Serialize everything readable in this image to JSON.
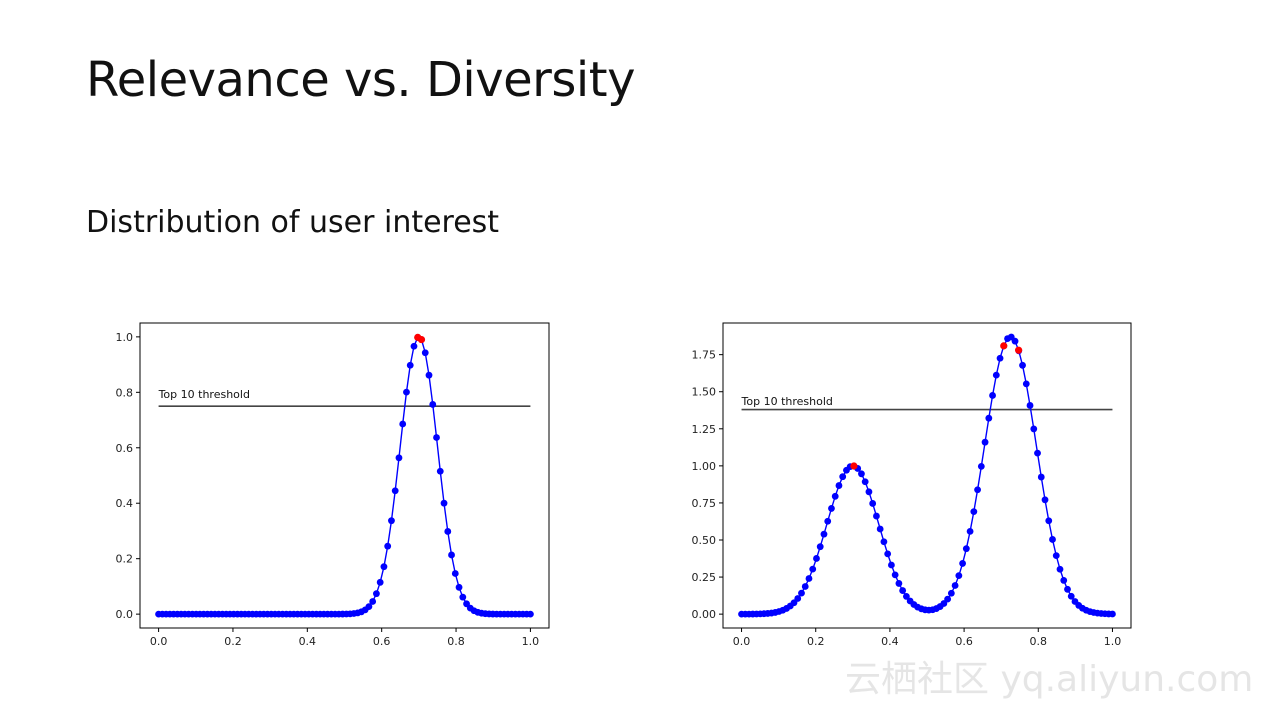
{
  "slide": {
    "title": "Relevance vs. Diversity",
    "subtitle": "Distribution of user interest",
    "watermark": "云栖社区 yq.aliyun.com"
  },
  "colors": {
    "line": "#0000ff",
    "dot": "#0000ff",
    "highlight": "#ff0000",
    "threshold": "#444444"
  },
  "chart_data": [
    {
      "type": "line",
      "title": "",
      "xlabel": "",
      "ylabel": "",
      "xlim": [
        -0.05,
        1.05
      ],
      "ylim": [
        -0.05,
        1.05
      ],
      "x_ticks": [
        0.0,
        0.2,
        0.4,
        0.6,
        0.8,
        1.0
      ],
      "x_tick_labels": [
        "0.0",
        "0.2",
        "0.4",
        "0.6",
        "0.8",
        "1.0"
      ],
      "y_ticks": [
        0.0,
        0.2,
        0.4,
        0.6,
        0.8,
        1.0
      ],
      "y_tick_labels": [
        "0.0",
        "0.2",
        "0.4",
        "0.6",
        "0.8",
        "1.0"
      ],
      "n_points": 100,
      "x_range": [
        0.0,
        1.0
      ],
      "peaks": [
        {
          "center": 0.7,
          "height": 1.0,
          "sigma": 0.05
        }
      ],
      "threshold": {
        "y": 0.75,
        "x_start": 0.0,
        "x_end": 1.0,
        "label": "Top 10 threshold",
        "label_x": 0.0,
        "label_y": 0.78
      },
      "highlighted_x": [
        0.697,
        0.707
      ]
    },
    {
      "type": "line",
      "title": "",
      "xlabel": "",
      "ylabel": "",
      "xlim": [
        -0.05,
        1.05
      ],
      "ylim": [
        -0.0935,
        1.9635
      ],
      "x_ticks": [
        0.0,
        0.2,
        0.4,
        0.6,
        0.8,
        1.0
      ],
      "x_tick_labels": [
        "0.0",
        "0.2",
        "0.4",
        "0.6",
        "0.8",
        "1.0"
      ],
      "y_ticks": [
        0.0,
        0.25,
        0.5,
        0.75,
        1.0,
        1.25,
        1.5,
        1.75
      ],
      "y_tick_labels": [
        "0.00",
        "0.25",
        "0.50",
        "0.75",
        "1.00",
        "1.25",
        "1.50",
        "1.75"
      ],
      "n_points": 100,
      "x_range": [
        0.0,
        1.0
      ],
      "peaks": [
        {
          "center": 0.3,
          "height": 1.0,
          "sigma": 0.07
        },
        {
          "center": 0.725,
          "height": 1.87,
          "sigma": 0.07
        }
      ],
      "threshold": {
        "y": 1.38,
        "x_start": 0.0,
        "x_end": 1.0,
        "label": "Top 10 threshold",
        "label_x": 0.0,
        "label_y": 1.41
      },
      "highlighted_x": [
        0.303,
        0.707,
        0.747
      ]
    }
  ]
}
